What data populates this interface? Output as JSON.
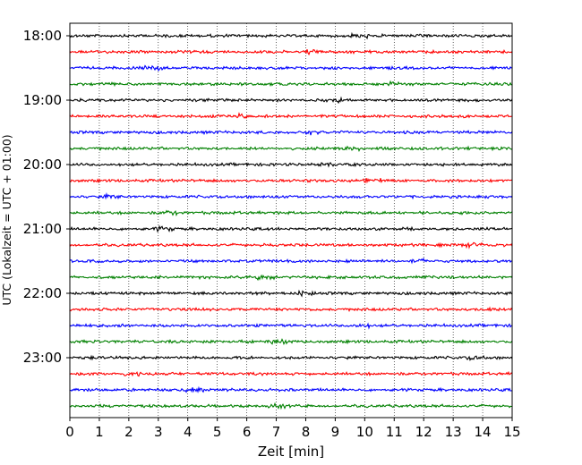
{
  "chart_data": {
    "type": "line",
    "title": "",
    "xlabel": "Zeit  [min]",
    "ylabel": "UTC (Lokalzeit = UTC + 01:00)",
    "xlim": [
      0,
      15
    ],
    "x_ticks": [
      0,
      1,
      2,
      3,
      4,
      5,
      6,
      7,
      8,
      9,
      10,
      11,
      12,
      13,
      14,
      15
    ],
    "x_grid": true,
    "y_tick_labels": [
      "18:00",
      "19:00",
      "20:00",
      "21:00",
      "22:00",
      "23:00"
    ],
    "traces": [
      {
        "start": "18:00",
        "color": "#000000"
      },
      {
        "start": "18:15",
        "color": "#ff0000"
      },
      {
        "start": "18:30",
        "color": "#0000ff"
      },
      {
        "start": "18:45",
        "color": "#008000"
      },
      {
        "start": "19:00",
        "color": "#000000"
      },
      {
        "start": "19:15",
        "color": "#ff0000"
      },
      {
        "start": "19:30",
        "color": "#0000ff"
      },
      {
        "start": "19:45",
        "color": "#008000"
      },
      {
        "start": "20:00",
        "color": "#000000"
      },
      {
        "start": "20:15",
        "color": "#ff0000"
      },
      {
        "start": "20:30",
        "color": "#0000ff"
      },
      {
        "start": "20:45",
        "color": "#008000"
      },
      {
        "start": "21:00",
        "color": "#000000"
      },
      {
        "start": "21:15",
        "color": "#ff0000"
      },
      {
        "start": "21:30",
        "color": "#0000ff"
      },
      {
        "start": "21:45",
        "color": "#008000"
      },
      {
        "start": "22:00",
        "color": "#000000"
      },
      {
        "start": "22:15",
        "color": "#ff0000"
      },
      {
        "start": "22:30",
        "color": "#0000ff"
      },
      {
        "start": "22:45",
        "color": "#008000"
      },
      {
        "start": "23:00",
        "color": "#000000"
      },
      {
        "start": "23:15",
        "color": "#ff0000"
      },
      {
        "start": "23:30",
        "color": "#0000ff"
      },
      {
        "start": "23:45",
        "color": "#008000"
      }
    ]
  }
}
